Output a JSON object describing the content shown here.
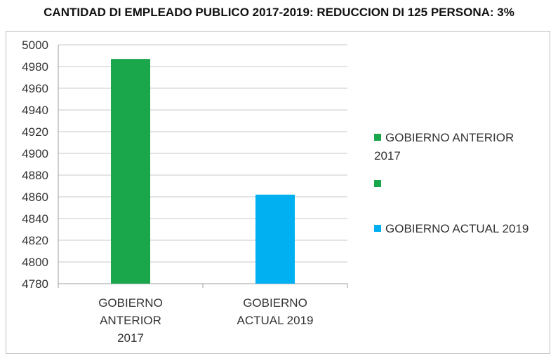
{
  "title": "CANTIDAD DI EMPLEADO PUBLICO 2017-2019: REDUCCION DI 125 PERSONA: 3%",
  "chart_data": {
    "type": "bar",
    "categories": [
      [
        "GOBIERNO",
        "ANTERIOR",
        "2017"
      ],
      [
        "GOBIERNO",
        "ACTUAL 2019"
      ]
    ],
    "values": [
      4987,
      4862
    ],
    "colors": [
      "#1aa64a",
      "#00b0f0"
    ],
    "ylim": [
      4780,
      5000
    ],
    "yticks": [
      4780,
      4800,
      4820,
      4840,
      4860,
      4880,
      4900,
      4920,
      4940,
      4960,
      4980,
      5000
    ],
    "grid": true,
    "legend": {
      "placement": "right",
      "items": [
        {
          "line1": "GOBIERNO ANTERIOR",
          "line2": "2017",
          "color": "#1aa64a"
        },
        {
          "line1": "",
          "line2": "",
          "color": "#1aa64a"
        },
        {
          "line1": "GOBIERNO ACTUAL 2019",
          "line2": "",
          "color": "#00b0f0"
        }
      ]
    }
  }
}
